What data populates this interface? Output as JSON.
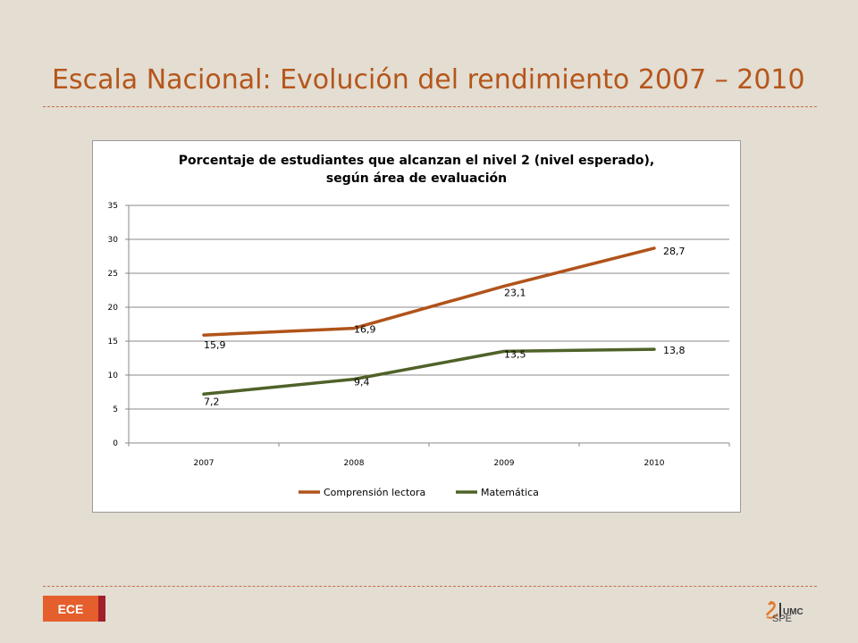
{
  "slide": {
    "title": "Escala Nacional: Evolución del rendimiento 2007 – 2010",
    "badge_label": "ECE",
    "logo_label": "SPE",
    "logo_mark": "UMC"
  },
  "colors": {
    "background": "#e3ddd2",
    "title": "#b5561b",
    "series_1": "#b0531a",
    "series_2": "#4f6228",
    "badge": "#e45f2c",
    "badge_bar": "#a01f2b"
  },
  "chart_data": {
    "type": "line",
    "title_line1": "Porcentaje de estudiantes que alcanzan el nivel 2 (nivel esperado),",
    "title_line2": "según área de evaluación",
    "categories": [
      "2007",
      "2008",
      "2009",
      "2010"
    ],
    "series": [
      {
        "name": "Comprensión lectora",
        "values": [
          15.9,
          16.9,
          23.1,
          28.7
        ],
        "labels": [
          "15,9",
          "16,9",
          "23,1",
          "28,7"
        ],
        "color": "#b0531a"
      },
      {
        "name": "Matemática",
        "values": [
          7.2,
          9.4,
          13.5,
          13.8
        ],
        "labels": [
          "7,2",
          "9,4",
          "13,5",
          "13,8"
        ],
        "color": "#4f6228"
      }
    ],
    "ylim": [
      0,
      35
    ],
    "yticks": [
      0,
      5,
      10,
      15,
      20,
      25,
      30,
      35
    ],
    "grid": true,
    "legend": "bottom"
  }
}
